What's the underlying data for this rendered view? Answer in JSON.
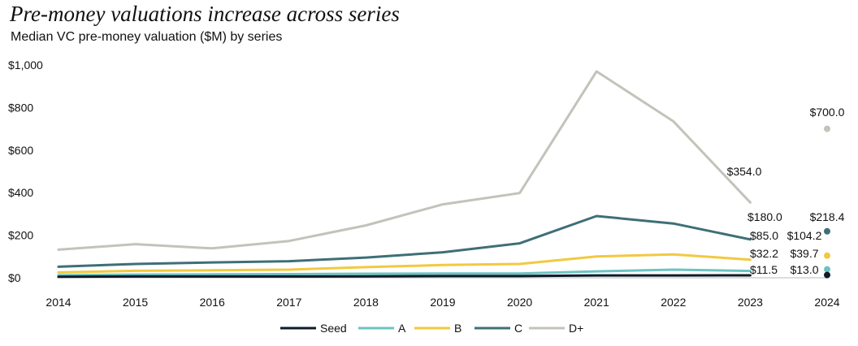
{
  "chart_data": {
    "type": "line",
    "title": "Pre-money valuations increase across series",
    "subtitle": "Median VC pre-money valuation ($M) by series",
    "xlabel": "",
    "ylabel": "",
    "ylim": [
      0,
      1000
    ],
    "yticks": [
      0,
      200,
      400,
      600,
      800,
      1000
    ],
    "ytick_labels": [
      "$0",
      "$200",
      "$400",
      "$600",
      "$800",
      "$1,000"
    ],
    "categories": [
      "2014",
      "2015",
      "2016",
      "2017",
      "2018",
      "2019",
      "2020",
      "2021",
      "2022",
      "2023",
      "2024"
    ],
    "series": [
      {
        "name": "Seed",
        "color": "#0d1b2a",
        "values": [
          5,
          6,
          6,
          6,
          7,
          8,
          8,
          11,
          11,
          11.5,
          13.0
        ]
      },
      {
        "name": "A",
        "color": "#6cc3c1",
        "values": [
          12,
          15,
          16,
          17,
          19,
          20,
          20,
          30,
          38,
          32.2,
          39.7
        ]
      },
      {
        "name": "B",
        "color": "#f2c940",
        "values": [
          25,
          33,
          35,
          38,
          50,
          60,
          65,
          100,
          110,
          85.0,
          104.2
        ]
      },
      {
        "name": "C",
        "color": "#3e6f77",
        "values": [
          52,
          65,
          72,
          78,
          95,
          120,
          162,
          290,
          255,
          180.0,
          218.4
        ]
      },
      {
        "name": "D+",
        "color": "#c4c2ba",
        "values": [
          132,
          158,
          138,
          173,
          246,
          345,
          398,
          970,
          735,
          354.0,
          700.0
        ]
      }
    ],
    "annotations": [
      {
        "category": "2023",
        "series": "D+",
        "label": "$354.0"
      },
      {
        "category": "2023",
        "series": "C",
        "label": "$180.0"
      },
      {
        "category": "2023",
        "series": "B",
        "label": "$85.0"
      },
      {
        "category": "2023",
        "series": "A",
        "label": "$32.2"
      },
      {
        "category": "2023",
        "series": "Seed",
        "label": "$11.5"
      },
      {
        "category": "2024",
        "series": "D+",
        "label": "$700.0"
      },
      {
        "category": "2024",
        "series": "C",
        "label": "$218.4"
      },
      {
        "category": "2024",
        "series": "B",
        "label": "$104.2"
      },
      {
        "category": "2024",
        "series": "A",
        "label": "$39.7"
      },
      {
        "category": "2024",
        "series": "Seed",
        "label": "$13.0"
      }
    ],
    "legend": [
      "Seed",
      "A",
      "B",
      "C",
      "D+"
    ],
    "legend_position": "bottom-center",
    "grid": false
  }
}
